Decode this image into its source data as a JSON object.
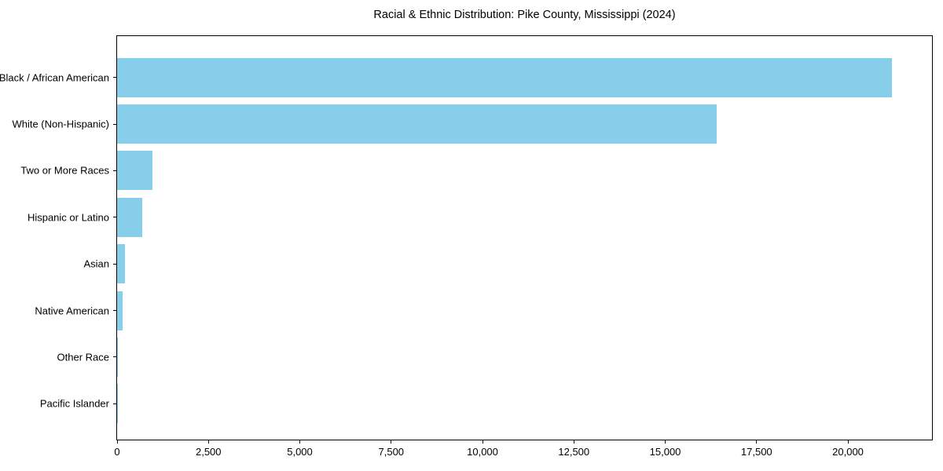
{
  "chart_data": {
    "type": "bar",
    "orientation": "horizontal",
    "title": "Racial & Ethnic Distribution: Pike County, Mississippi (2024)",
    "categories": [
      "Black / African American",
      "White (Non-Hispanic)",
      "Two or More Races",
      "Hispanic or Latino",
      "Asian",
      "Native American",
      "Other Race",
      "Pacific Islander"
    ],
    "values": [
      21200,
      16400,
      970,
      690,
      210,
      160,
      25,
      10
    ],
    "xlabel": "",
    "ylabel": "",
    "xlim": [
      0,
      22300
    ],
    "xticks": [
      {
        "value": 0,
        "label": "0"
      },
      {
        "value": 2500,
        "label": "2,500"
      },
      {
        "value": 5000,
        "label": "5,000"
      },
      {
        "value": 7500,
        "label": "7,500"
      },
      {
        "value": 10000,
        "label": "10,000"
      },
      {
        "value": 12500,
        "label": "12,500"
      },
      {
        "value": 15000,
        "label": "15,000"
      },
      {
        "value": 17500,
        "label": "17,500"
      },
      {
        "value": 20000,
        "label": "20,000"
      }
    ],
    "grid": false,
    "legend": "none",
    "bar_color": "#87ceeb",
    "background_color": "#ffffff",
    "spine_color": "#000000",
    "text_color": "#000000"
  }
}
